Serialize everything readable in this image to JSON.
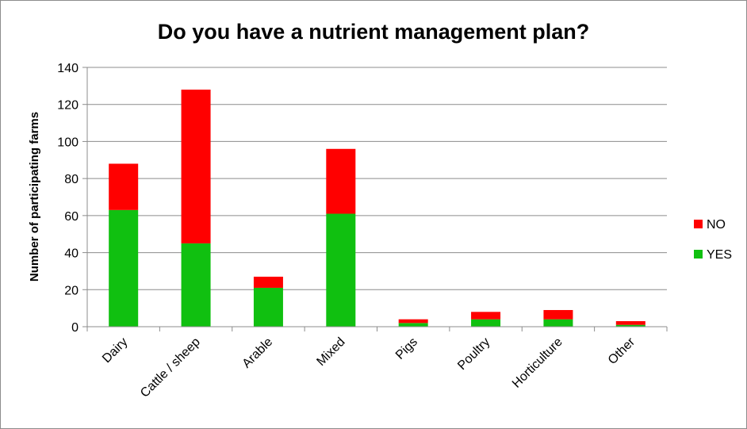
{
  "chart_data": {
    "type": "bar",
    "stacked": true,
    "title": "Do you have a nutrient management plan?",
    "xlabel": "",
    "ylabel": "Number of participating farms",
    "ylim": [
      0,
      140
    ],
    "yticks": [
      0,
      20,
      40,
      60,
      80,
      100,
      120,
      140
    ],
    "grid": true,
    "legend_position": "right",
    "categories": [
      "Dairy",
      "Cattle / sheep",
      "Arable",
      "Mixed",
      "Pigs",
      "Poultry",
      "Horticulture",
      "Other"
    ],
    "series": [
      {
        "name": "YES",
        "color": "#10c010",
        "values": [
          63,
          45,
          21,
          61,
          2,
          4,
          4,
          1
        ]
      },
      {
        "name": "NO",
        "color": "#ff0000",
        "values": [
          25,
          83,
          6,
          35,
          2,
          4,
          5,
          2
        ]
      }
    ]
  }
}
